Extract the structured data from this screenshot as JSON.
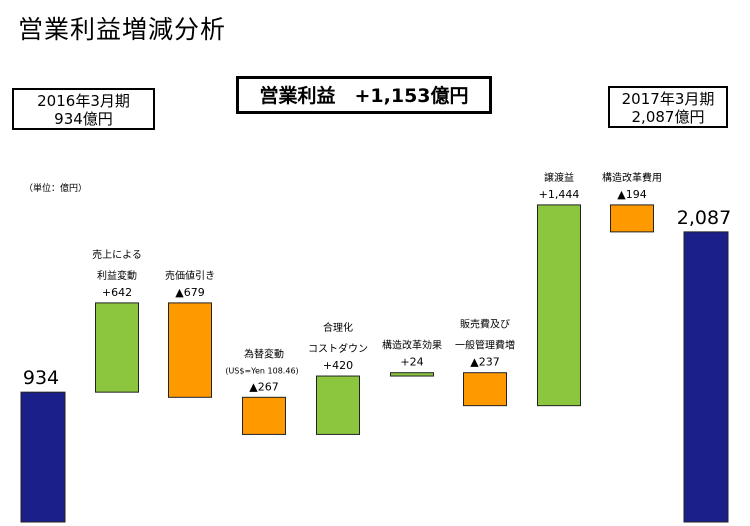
{
  "title": "営業利益増減分析",
  "start_box": {
    "line1": "2016年3月期",
    "line2": "934億円"
  },
  "end_box": {
    "line1": "2017年3月期",
    "line2": "2,087億円"
  },
  "total_box": "営業利益　+1,153億円",
  "unit_note": "（単位：億円）",
  "colors": {
    "total": "#1a1f8a",
    "increase": "#8cc63f",
    "decrease": "#ff9900"
  },
  "chart_data": {
    "type": "bar",
    "subtype": "waterfall",
    "ylim": [
      0,
      2230
    ],
    "categories": [
      [
        "2016年3月期"
      ],
      [
        "売上による",
        "利益変動"
      ],
      [
        "売価値引き"
      ],
      [
        "為替変動"
      ],
      [
        "合理化",
        "コストダウン"
      ],
      [
        "構造改革効果"
      ],
      [
        "販売費及び",
        "一般管理費増"
      ],
      [
        "譲渡益"
      ],
      [
        "構造改革費用"
      ],
      [
        "2017年3月期"
      ]
    ],
    "notes": [
      "",
      "",
      "",
      "(US$=Yen 108.46)",
      "",
      "",
      "",
      "",
      "",
      ""
    ],
    "kinds": [
      "total",
      "increase",
      "decrease",
      "decrease",
      "increase",
      "increase",
      "decrease",
      "increase",
      "decrease",
      "total"
    ],
    "values": [
      934,
      642,
      -679,
      -267,
      420,
      24,
      -237,
      1444,
      -194,
      2087
    ],
    "data_labels": [
      "934",
      "+642",
      "▲679",
      "▲267",
      "+420",
      "+24",
      "▲237",
      "+1,444",
      "▲194",
      "2,087"
    ]
  }
}
